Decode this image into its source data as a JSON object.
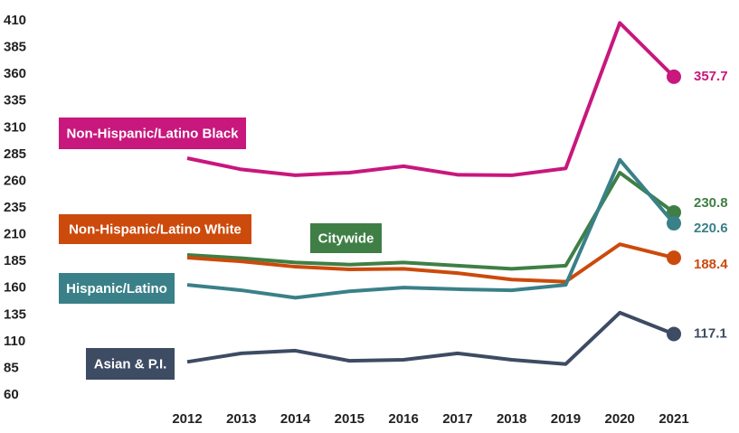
{
  "chart_data": {
    "type": "line",
    "x": [
      2012,
      2013,
      2014,
      2015,
      2016,
      2017,
      2018,
      2019,
      2020,
      2021
    ],
    "ylim": [
      60,
      410
    ],
    "yticks": [
      60,
      85,
      110,
      135,
      160,
      185,
      210,
      235,
      260,
      285,
      310,
      335,
      360,
      385,
      410
    ],
    "grid": false,
    "series": [
      {
        "name": "Non-Hispanic/Latino Black",
        "color": "#c8177d",
        "values": [
          281.5,
          271,
          265.5,
          268,
          274,
          266,
          265.5,
          272,
          408,
          357.7
        ]
      },
      {
        "name": "Citywide",
        "color": "#3f7f45",
        "values": [
          191,
          188,
          184,
          182,
          184,
          181,
          178,
          181,
          268,
          230.8
        ]
      },
      {
        "name": "Non-Hispanic/Latino White",
        "color": "#cc4a0b",
        "values": [
          188.5,
          185,
          180,
          177.5,
          178,
          174,
          168,
          166,
          201,
          188.4
        ]
      },
      {
        "name": "Hispanic/Latino",
        "color": "#3a8088",
        "values": [
          163,
          158,
          151,
          157,
          160.5,
          159,
          158,
          163,
          280,
          220.6
        ]
      },
      {
        "name": "Asian & P.I.",
        "color": "#3d4b63",
        "values": [
          91,
          99,
          101.5,
          92,
          93,
          99,
          93,
          89,
          137,
          117.1
        ]
      }
    ]
  }
}
